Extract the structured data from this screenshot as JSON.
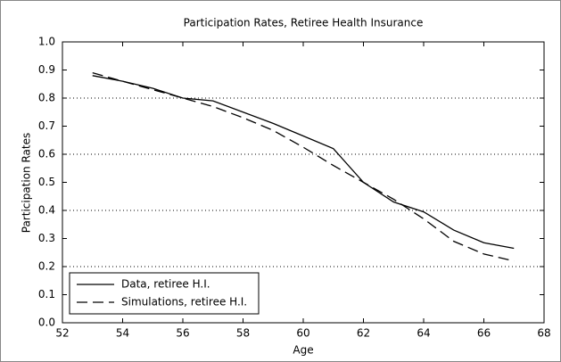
{
  "chart_data": {
    "type": "line",
    "title": "Participation Rates, Retiree Health Insurance",
    "xlabel": "Age",
    "ylabel": "Participation Rates",
    "x": [
      53,
      54,
      55,
      56,
      57,
      58,
      59,
      60,
      61,
      62,
      63,
      64,
      65,
      66,
      67
    ],
    "series": [
      {
        "name": "Data, retiree H.I.",
        "color": "#000000",
        "line_style": "solid",
        "values": [
          0.88,
          0.86,
          0.835,
          0.8,
          0.79,
          0.75,
          0.71,
          0.665,
          0.62,
          0.5,
          0.43,
          0.395,
          0.33,
          0.285,
          0.265
        ]
      },
      {
        "name": "Simulations, retiree H.I.",
        "color": "#000000",
        "line_style": "dashed",
        "values": [
          0.89,
          0.86,
          0.83,
          0.8,
          0.77,
          0.73,
          0.685,
          0.625,
          0.56,
          0.5,
          0.44,
          0.37,
          0.29,
          0.245,
          0.22
        ]
      }
    ],
    "xlim": [
      52,
      68
    ],
    "xticks": [
      52,
      54,
      56,
      58,
      60,
      62,
      64,
      66,
      68
    ],
    "ylim": [
      0,
      1
    ],
    "yticks": [
      {
        "value": 0,
        "label": "0.0"
      },
      0.1,
      0.2,
      0.3,
      0.4,
      0.5,
      0.6,
      0.7,
      0.8,
      0.9,
      {
        "value": 1,
        "label": "1.0"
      }
    ],
    "grid_y": [
      0.2,
      0.4,
      0.6,
      0.8
    ],
    "legend": "lower left"
  }
}
